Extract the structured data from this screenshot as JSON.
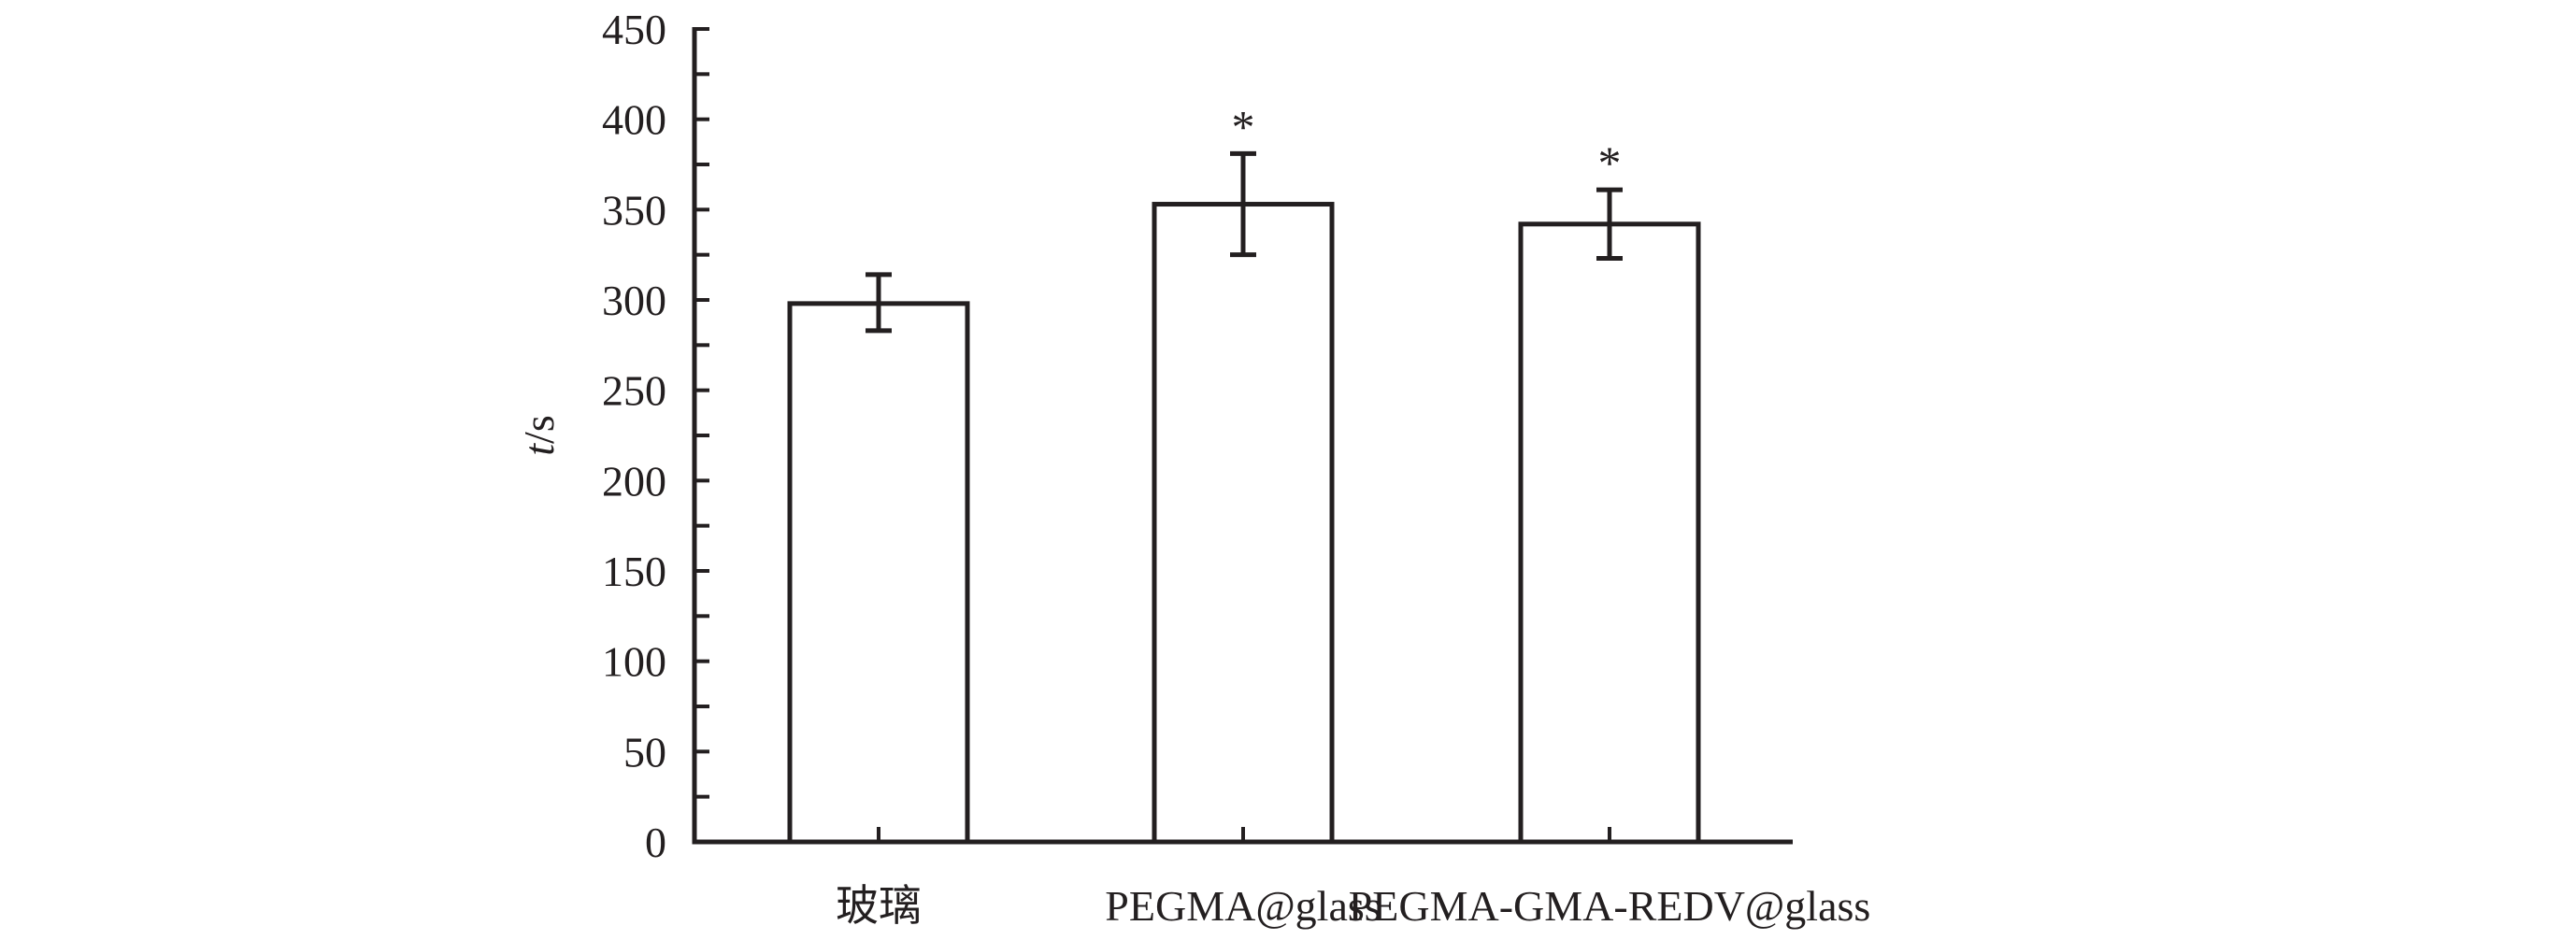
{
  "chart_data": {
    "type": "bar",
    "categories": [
      "玻璃",
      "PEGMA@glass",
      "PEGMA-GMA-REDV@glass"
    ],
    "values": [
      298,
      353,
      342
    ],
    "error_upper": [
      314,
      381,
      361
    ],
    "error_lower": [
      283,
      325,
      323
    ],
    "significance": [
      "",
      "*",
      "*"
    ],
    "ylabel_var": "t",
    "ylabel_unit": "/s",
    "ylim": [
      0,
      450
    ],
    "yticks": [
      0,
      50,
      100,
      150,
      200,
      250,
      300,
      350,
      400,
      450
    ],
    "grid": false,
    "legend": false,
    "colors": {
      "bar_fill": "#ffffff",
      "stroke": "#231f20",
      "text": "#231f20"
    }
  }
}
